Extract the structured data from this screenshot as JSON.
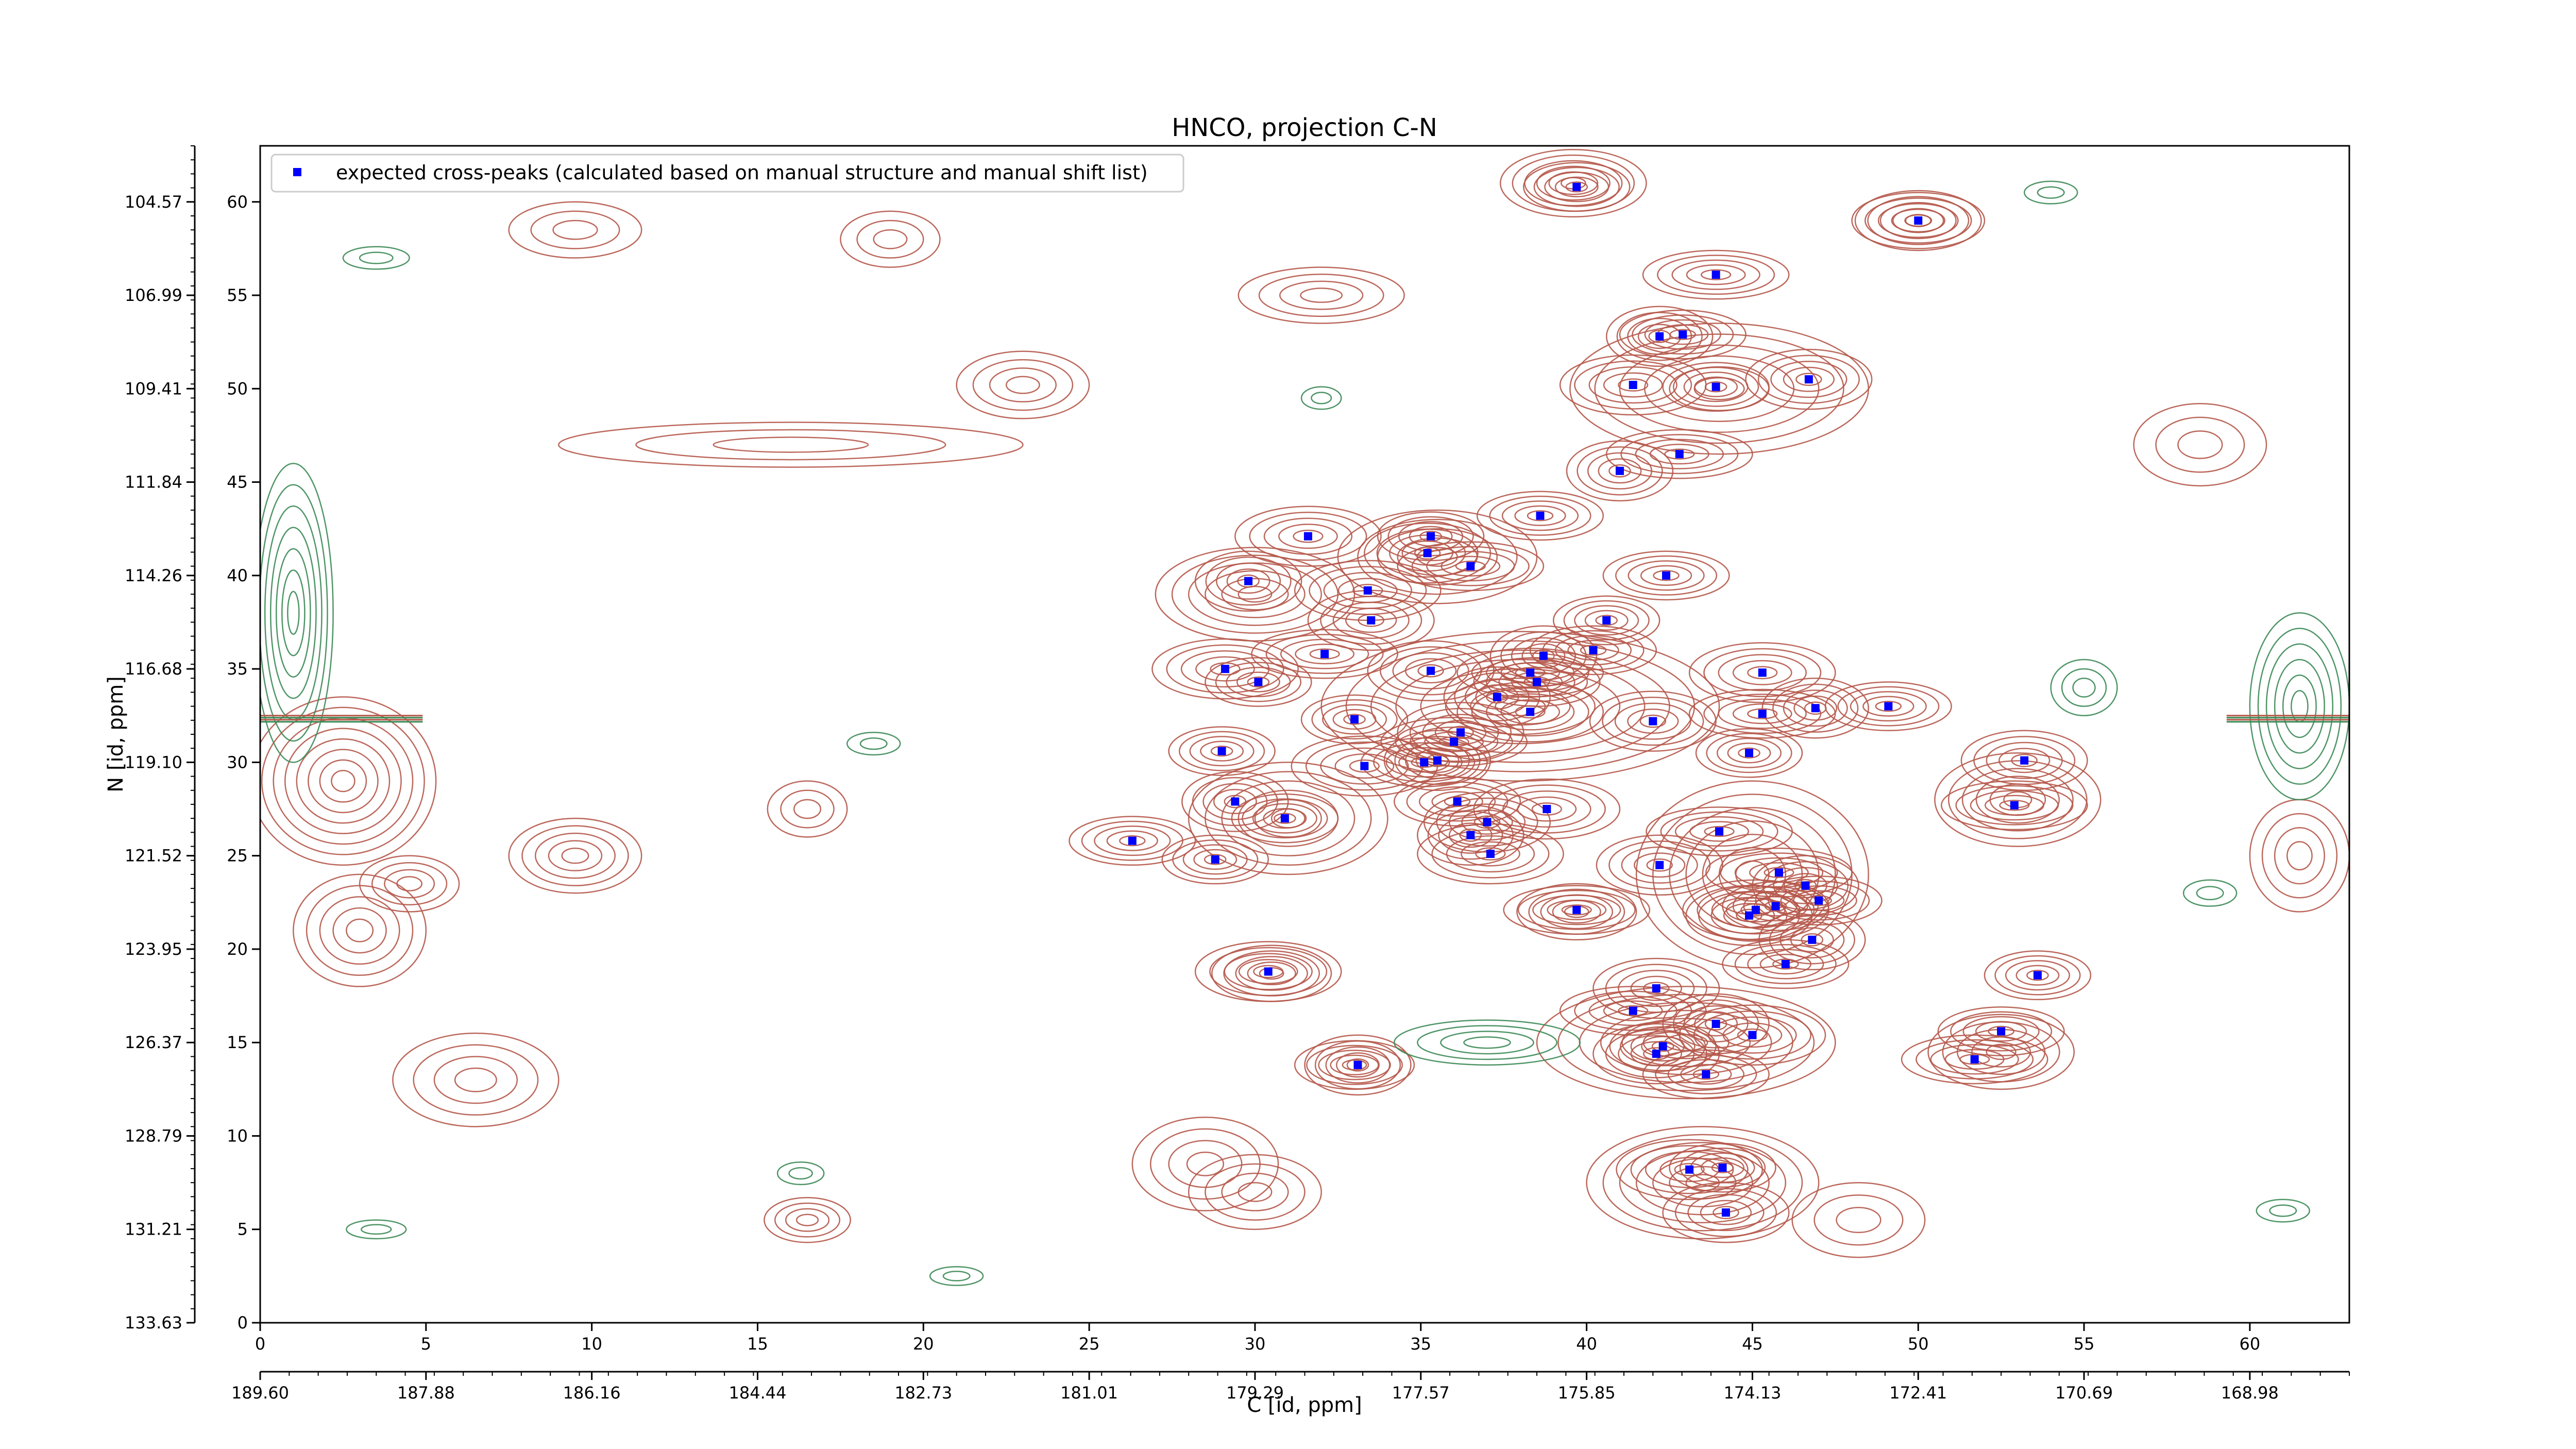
{
  "chart_data": {
    "type": "scatter",
    "title": "HNCO, projection C-N",
    "xlabel": "C [id, ppm]",
    "ylabel": "N [id, ppm]",
    "xlim": [
      0,
      63
    ],
    "ylim": [
      0,
      63
    ],
    "xticks": [
      0,
      5,
      10,
      15,
      20,
      25,
      30,
      35,
      40,
      45,
      50,
      55,
      60
    ],
    "yticks": [
      0,
      5,
      10,
      15,
      20,
      25,
      30,
      35,
      40,
      45,
      50,
      55,
      60
    ],
    "secondary_x_ticks": [
      "189.60",
      "187.88",
      "186.16",
      "184.44",
      "182.73",
      "181.01",
      "179.29",
      "177.57",
      "175.85",
      "174.13",
      "172.41",
      "170.69",
      "168.98"
    ],
    "secondary_y_ticks": [
      "133.63",
      "131.21",
      "128.79",
      "126.37",
      "123.95",
      "121.52",
      "119.10",
      "116.68",
      "114.26",
      "111.84",
      "109.41",
      "106.99",
      "104.57"
    ],
    "legend": {
      "position": "top-left",
      "label": "expected cross-peaks (calculated based on manual structure and manual shift list)"
    },
    "marker_color": "#0000ff",
    "contour_colors": {
      "positive": "#b5584a",
      "negative": "#3c8a56"
    },
    "series": [
      {
        "name": "expected cross-peaks (calculated based on manual structure and manual shift list)",
        "points": [
          [
            39.7,
            60.8
          ],
          [
            50.0,
            59.0
          ],
          [
            43.9,
            56.1
          ],
          [
            42.2,
            52.8
          ],
          [
            42.9,
            52.9
          ],
          [
            41.4,
            50.2
          ],
          [
            43.9,
            50.1
          ],
          [
            46.7,
            50.5
          ],
          [
            42.8,
            46.5
          ],
          [
            41.0,
            45.6
          ],
          [
            38.6,
            43.2
          ],
          [
            31.6,
            42.1
          ],
          [
            35.3,
            42.1
          ],
          [
            35.2,
            41.2
          ],
          [
            36.5,
            40.5
          ],
          [
            29.8,
            39.7
          ],
          [
            42.4,
            40.0
          ],
          [
            33.4,
            39.2
          ],
          [
            40.6,
            37.6
          ],
          [
            33.5,
            37.6
          ],
          [
            32.1,
            35.8
          ],
          [
            38.7,
            35.7
          ],
          [
            40.2,
            36.0
          ],
          [
            29.1,
            35.0
          ],
          [
            30.1,
            34.3
          ],
          [
            35.3,
            34.9
          ],
          [
            38.3,
            34.8
          ],
          [
            37.3,
            33.5
          ],
          [
            38.5,
            34.3
          ],
          [
            38.3,
            32.7
          ],
          [
            33.0,
            32.3
          ],
          [
            36.2,
            31.6
          ],
          [
            36.0,
            31.1
          ],
          [
            35.5,
            30.1
          ],
          [
            35.1,
            30.0
          ],
          [
            33.3,
            29.8
          ],
          [
            29.0,
            30.6
          ],
          [
            42.0,
            32.2
          ],
          [
            45.3,
            32.6
          ],
          [
            46.9,
            32.9
          ],
          [
            49.1,
            33.0
          ],
          [
            45.3,
            34.8
          ],
          [
            44.9,
            30.5
          ],
          [
            53.2,
            30.1
          ],
          [
            52.9,
            27.7
          ],
          [
            29.4,
            27.9
          ],
          [
            36.1,
            27.9
          ],
          [
            38.8,
            27.5
          ],
          [
            30.9,
            27.0
          ],
          [
            37.0,
            26.8
          ],
          [
            44.0,
            26.3
          ],
          [
            36.5,
            26.1
          ],
          [
            26.3,
            25.8
          ],
          [
            37.1,
            25.1
          ],
          [
            28.8,
            24.8
          ],
          [
            42.2,
            24.5
          ],
          [
            45.8,
            24.1
          ],
          [
            46.6,
            23.4
          ],
          [
            47.0,
            22.6
          ],
          [
            45.1,
            22.1
          ],
          [
            45.7,
            22.3
          ],
          [
            44.9,
            21.8
          ],
          [
            39.7,
            22.1
          ],
          [
            46.8,
            20.5
          ],
          [
            46.0,
            19.2
          ],
          [
            30.4,
            18.8
          ],
          [
            53.6,
            18.6
          ],
          [
            42.1,
            17.9
          ],
          [
            41.4,
            16.7
          ],
          [
            43.9,
            16.0
          ],
          [
            52.5,
            15.6
          ],
          [
            45.0,
            15.4
          ],
          [
            42.3,
            14.8
          ],
          [
            42.1,
            14.4
          ],
          [
            51.7,
            14.1
          ],
          [
            33.1,
            13.8
          ],
          [
            43.6,
            13.3
          ],
          [
            43.1,
            8.2
          ],
          [
            44.1,
            8.3
          ],
          [
            44.2,
            5.9
          ]
        ]
      }
    ]
  }
}
